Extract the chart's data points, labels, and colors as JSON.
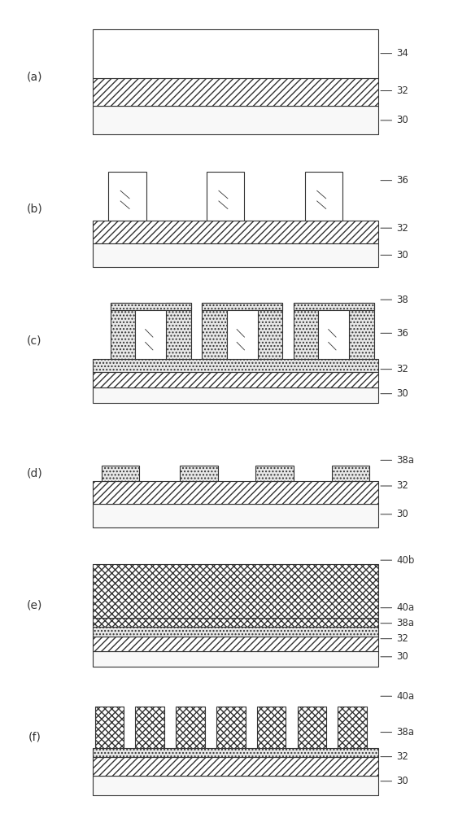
{
  "bg_color": "#ffffff",
  "line_color": "#333333",
  "hatch_32": "////",
  "hatch_36": "",
  "hatch_38": "....",
  "hatch_40b": "xxxx",
  "hatch_40a": "xxxx",
  "panels": [
    "(a)",
    "(b)",
    "(c)",
    "(d)",
    "(e)",
    "(f)"
  ],
  "labels": {
    "a": [
      "34",
      "32",
      "30"
    ],
    "b": [
      "36",
      "32",
      "30"
    ],
    "c": [
      "38",
      "36",
      "32",
      "30"
    ],
    "d": [
      "38a",
      "32",
      "30"
    ],
    "e": [
      "40b",
      "40a",
      "38a",
      "32",
      "30"
    ],
    "f": [
      "40a",
      "38a",
      "32",
      "30"
    ]
  }
}
